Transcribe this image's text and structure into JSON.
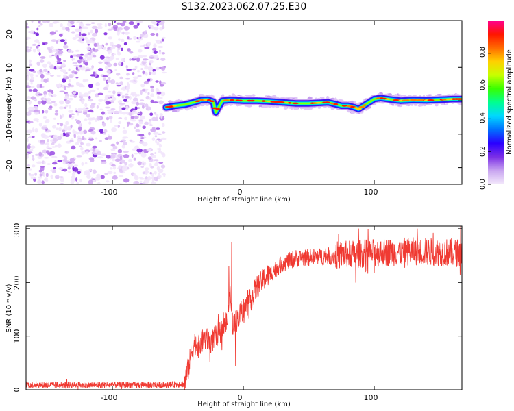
{
  "title": "S132.2023.062.07.25.E30",
  "colorbar": {
    "label": "Normalized spectral amplitude",
    "range": [
      0,
      1
    ],
    "ticks": [
      "0.0",
      "0.2",
      "0.4",
      "0.6",
      "0.8"
    ],
    "colors": [
      "#f3e9fb",
      "#c9a6f0",
      "#7b2fe6",
      "#2a00ff",
      "#0070ff",
      "#00d8ff",
      "#00ff90",
      "#38ff00",
      "#c8ff00",
      "#ffd000",
      "#ff6a00",
      "#ff1500",
      "#ff0090"
    ]
  },
  "chart_data": [
    {
      "type": "heatmap",
      "name": "spectrogram",
      "xlabel": "Height of straight line (km)",
      "ylabel": "Frequency (Hz)",
      "xlim": [
        -166,
        167
      ],
      "ylim": [
        -25,
        24
      ],
      "xticks": [
        -100,
        0,
        100
      ],
      "xtick_labels": [
        "-100",
        "0",
        "100"
      ],
      "yticks": [
        -20,
        -10,
        0,
        10,
        20
      ],
      "ytick_labels": [
        "-20",
        "-10",
        "0",
        "10",
        "20"
      ],
      "noise_region_x": [
        -166,
        -60
      ],
      "signal_start_x": -59,
      "signal_track": {
        "x": [
          -59,
          -52,
          -45,
          -38,
          -32,
          -27,
          -23,
          -21,
          -19,
          -16,
          -10,
          -5,
          0,
          10,
          20,
          30,
          40,
          50,
          60,
          65,
          70,
          75,
          80,
          85,
          88,
          92,
          96,
          100,
          105,
          110,
          120,
          130,
          140,
          150,
          160,
          167
        ],
        "y": [
          -2.0,
          -1.5,
          -1.2,
          -0.5,
          0.2,
          0.3,
          -0.3,
          -3.5,
          -2.0,
          0.0,
          0.2,
          0.1,
          0.0,
          0.0,
          -0.2,
          -0.5,
          -0.8,
          -0.8,
          -0.6,
          -0.5,
          -1.0,
          -1.5,
          -1.5,
          -2.0,
          -2.5,
          -1.5,
          -0.5,
          0.5,
          0.8,
          0.5,
          0.0,
          0.2,
          0.1,
          0.3,
          0.5,
          0.5
        ]
      },
      "colorbar_label": "Normalized spectral amplitude"
    },
    {
      "type": "line",
      "name": "snr",
      "xlabel": "Height of straight line (km)",
      "ylabel": "SNR (10 * v/v)",
      "xlim": [
        -166,
        167
      ],
      "ylim": [
        0,
        305
      ],
      "xticks": [
        -100,
        0,
        100
      ],
      "xtick_labels": [
        "-100",
        "0",
        "100"
      ],
      "yticks": [
        0,
        100,
        200,
        300
      ],
      "ytick_labels": [
        "0",
        "100",
        "200",
        "300"
      ],
      "color": "#f03a32",
      "series": [
        {
          "name": "SNR",
          "x": [
            -166,
            -150,
            -120,
            -90,
            -60,
            -50,
            -45,
            -42,
            -40,
            -37,
            -34,
            -30,
            -25,
            -20,
            -16,
            -12,
            -10,
            -8,
            -5,
            0,
            5,
            10,
            15,
            20,
            30,
            40,
            60,
            80,
            100,
            130,
            167
          ],
          "y": [
            10,
            9,
            9,
            9,
            9,
            10,
            11,
            40,
            65,
            88,
            80,
            95,
            90,
            100,
            112,
            130,
            175,
            120,
            130,
            150,
            165,
            190,
            205,
            215,
            235,
            245,
            248,
            252,
            255,
            258,
            255
          ],
          "spikes": [
            {
              "x": -9,
              "y": 275
            },
            {
              "x": -11,
              "y": 230
            },
            {
              "x": -19,
              "y": 140
            },
            {
              "x": -6,
              "y": 45
            },
            {
              "x": 88,
              "y": 300
            },
            {
              "x": 133,
              "y": 300
            },
            {
              "x": 145,
              "y": 292
            },
            {
              "x": 166,
              "y": 305
            },
            {
              "x": 86,
              "y": 200
            }
          ],
          "noise_amplitude": [
            {
              "x_from": -166,
              "x_to": -45,
              "amp": 6
            },
            {
              "x_from": -45,
              "x_to": 20,
              "amp": 22
            },
            {
              "x_from": 20,
              "x_to": 70,
              "amp": 16
            },
            {
              "x_from": 70,
              "x_to": 167,
              "amp": 26
            }
          ]
        }
      ]
    }
  ]
}
